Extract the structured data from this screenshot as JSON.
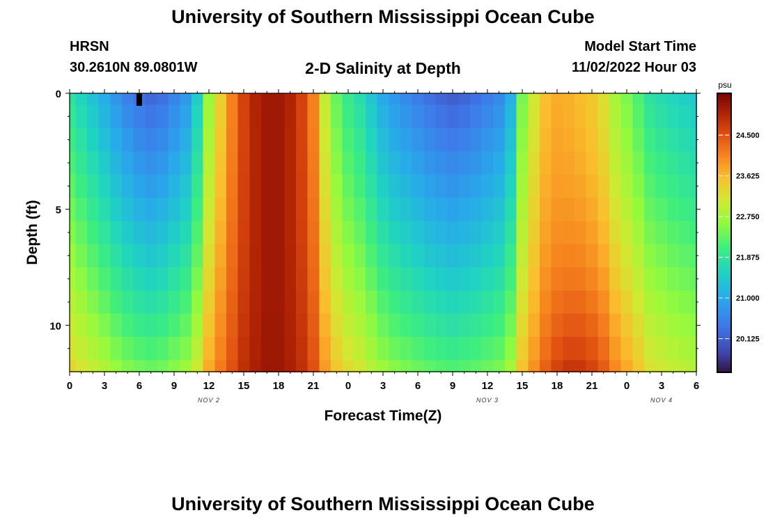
{
  "page": {
    "title": "University of Southern Mississippi Ocean Cube",
    "title_bottom": "University of Southern Mississippi Ocean Cube",
    "station": "HRSN",
    "coords": "30.2610N  89.0801W",
    "subtitle": "2-D Salinity at Depth",
    "model_start_label": "Model Start Time",
    "model_start_value": "11/02/2022 Hour 03"
  },
  "chart_data": {
    "type": "heatmap",
    "title": "2-D Salinity at Depth",
    "xlabel": "Forecast Time(Z)",
    "ylabel": "Depth (ft)",
    "x_unit": "hours since 11/02/2022 00Z",
    "xlim": [
      0,
      54
    ],
    "ylim": [
      0,
      12
    ],
    "x_ticks": [
      {
        "v": 0,
        "label": "0"
      },
      {
        "v": 3,
        "label": "3"
      },
      {
        "v": 6,
        "label": "6"
      },
      {
        "v": 9,
        "label": "9"
      },
      {
        "v": 12,
        "label": "12"
      },
      {
        "v": 15,
        "label": "15"
      },
      {
        "v": 18,
        "label": "18"
      },
      {
        "v": 21,
        "label": "21"
      },
      {
        "v": 24,
        "label": "0"
      },
      {
        "v": 27,
        "label": "3"
      },
      {
        "v": 30,
        "label": "6"
      },
      {
        "v": 33,
        "label": "9"
      },
      {
        "v": 36,
        "label": "12"
      },
      {
        "v": 39,
        "label": "15"
      },
      {
        "v": 42,
        "label": "18"
      },
      {
        "v": 45,
        "label": "21"
      },
      {
        "v": 48,
        "label": "0"
      },
      {
        "v": 51,
        "label": "3"
      },
      {
        "v": 54,
        "label": "6"
      }
    ],
    "date_labels": [
      {
        "v": 12,
        "label": "NOV 2"
      },
      {
        "v": 36,
        "label": "NOV 3"
      },
      {
        "v": 51,
        "label": "NOV 4"
      }
    ],
    "y_ticks": [
      {
        "v": 0,
        "label": "0"
      },
      {
        "v": 5,
        "label": "5"
      },
      {
        "v": 10,
        "label": "10"
      }
    ],
    "colorbar": {
      "unit": "psu",
      "range": [
        19.4,
        25.4
      ],
      "ticks": [
        "24.500",
        "23.625",
        "22.750",
        "21.875",
        "21.000",
        "20.125"
      ],
      "tick_values": [
        24.5,
        23.625,
        22.75,
        21.875,
        21.0,
        20.125
      ]
    },
    "grid": {
      "x": [
        0,
        1,
        2,
        3,
        4,
        5,
        6,
        7,
        8,
        9,
        10,
        11,
        12,
        13,
        14,
        15,
        16,
        17,
        18,
        19,
        20,
        21,
        22,
        23,
        24,
        25,
        26,
        27,
        28,
        29,
        30,
        31,
        32,
        33,
        34,
        35,
        36,
        37,
        38,
        39,
        40,
        41,
        42,
        43,
        44,
        45,
        46,
        47,
        48,
        49,
        50,
        51,
        52,
        53,
        54
      ],
      "depths": [
        0,
        1,
        2,
        3,
        4,
        5,
        6,
        7,
        8,
        9,
        10,
        11,
        12
      ],
      "values": [
        [
          21.84,
          21.58,
          21.32,
          21.06,
          20.77,
          20.53,
          20.34,
          20.24,
          20.34,
          20.57,
          20.82,
          21.47,
          22.67,
          23.41,
          24.09,
          24.66,
          24.98,
          25.11,
          25.11,
          24.98,
          24.66,
          24.09,
          23.0,
          22.35,
          21.98,
          21.73,
          21.37,
          21.02,
          20.8,
          20.63,
          20.47,
          20.33,
          20.22,
          20.14,
          20.22,
          20.33,
          20.47,
          20.63,
          21.08,
          22.46,
          23.11,
          23.58,
          23.74,
          23.7,
          23.62,
          23.48,
          23.22,
          22.78,
          22.49,
          22.18,
          21.84,
          21.7,
          21.59,
          21.5,
          21.41
        ],
        [
          21.95,
          21.69,
          21.44,
          21.18,
          20.9,
          20.67,
          20.49,
          20.4,
          20.49,
          20.71,
          20.95,
          21.59,
          22.74,
          23.45,
          24.1,
          24.65,
          24.97,
          25.11,
          25.11,
          24.97,
          24.65,
          24.1,
          23.05,
          22.42,
          22.06,
          21.82,
          21.48,
          21.14,
          20.93,
          20.77,
          20.62,
          20.48,
          20.38,
          20.31,
          20.38,
          20.48,
          20.62,
          20.77,
          21.2,
          22.53,
          23.16,
          23.61,
          23.76,
          23.72,
          23.65,
          23.51,
          23.26,
          22.84,
          22.56,
          22.26,
          21.93,
          21.8,
          21.69,
          21.61,
          21.52
        ],
        [
          22.06,
          21.81,
          21.56,
          21.31,
          21.04,
          20.82,
          20.64,
          20.55,
          20.64,
          20.85,
          21.08,
          21.7,
          22.81,
          23.49,
          24.12,
          24.65,
          24.96,
          25.11,
          25.11,
          24.96,
          24.65,
          24.12,
          23.1,
          22.49,
          22.14,
          21.92,
          21.59,
          21.26,
          21.05,
          20.9,
          20.76,
          20.63,
          20.53,
          20.46,
          20.53,
          20.63,
          20.76,
          20.9,
          21.32,
          22.6,
          23.2,
          23.64,
          23.79,
          23.75,
          23.68,
          23.55,
          23.31,
          22.9,
          22.63,
          22.34,
          22.03,
          21.9,
          21.79,
          21.71,
          21.63
        ],
        [
          22.17,
          21.93,
          21.69,
          21.45,
          21.18,
          20.97,
          20.8,
          20.71,
          20.8,
          21.0,
          21.22,
          21.82,
          22.89,
          23.54,
          24.14,
          24.66,
          24.96,
          25.11,
          25.11,
          24.96,
          24.66,
          24.14,
          23.16,
          22.57,
          22.23,
          22.02,
          21.7,
          21.38,
          21.19,
          21.04,
          20.91,
          20.78,
          20.69,
          20.62,
          20.69,
          20.78,
          20.91,
          21.04,
          21.44,
          22.67,
          23.26,
          23.68,
          23.82,
          23.8,
          23.73,
          23.61,
          23.38,
          22.98,
          22.72,
          22.44,
          22.13,
          22.01,
          21.9,
          21.82,
          21.74
        ],
        [
          22.29,
          22.05,
          21.82,
          21.59,
          21.33,
          21.12,
          20.96,
          20.88,
          20.96,
          21.15,
          21.37,
          21.94,
          22.97,
          23.59,
          24.17,
          24.67,
          24.96,
          25.11,
          25.11,
          24.96,
          24.67,
          24.17,
          23.22,
          22.66,
          22.33,
          22.12,
          21.82,
          21.51,
          21.32,
          21.18,
          21.05,
          20.93,
          20.84,
          20.78,
          20.84,
          20.93,
          21.05,
          21.18,
          21.57,
          22.75,
          23.31,
          23.72,
          23.86,
          23.85,
          23.8,
          23.68,
          23.46,
          23.07,
          22.81,
          22.53,
          22.23,
          22.11,
          22.01,
          21.93,
          21.85
        ],
        [
          22.41,
          22.18,
          21.95,
          21.73,
          21.48,
          21.28,
          21.13,
          21.05,
          21.13,
          21.31,
          21.51,
          22.07,
          23.05,
          23.65,
          24.2,
          24.68,
          24.96,
          25.11,
          25.11,
          24.96,
          24.68,
          24.2,
          23.29,
          22.75,
          22.43,
          22.23,
          21.94,
          21.64,
          21.46,
          21.33,
          21.2,
          21.09,
          21.0,
          20.94,
          21.0,
          21.09,
          21.2,
          21.33,
          21.7,
          22.83,
          23.37,
          23.77,
          23.91,
          23.91,
          23.87,
          23.76,
          23.55,
          23.17,
          22.91,
          22.64,
          22.34,
          22.23,
          22.12,
          22.05,
          21.97
        ],
        [
          22.53,
          22.31,
          22.09,
          21.87,
          21.63,
          21.44,
          21.3,
          21.22,
          21.3,
          21.47,
          21.66,
          22.2,
          23.14,
          23.71,
          24.23,
          24.69,
          24.96,
          25.11,
          25.11,
          24.96,
          24.69,
          24.23,
          23.36,
          22.84,
          22.53,
          22.34,
          22.06,
          21.77,
          21.6,
          21.47,
          21.35,
          21.24,
          21.16,
          21.1,
          21.16,
          21.24,
          21.35,
          21.47,
          21.83,
          22.91,
          23.43,
          23.82,
          23.97,
          23.98,
          23.95,
          23.84,
          23.64,
          23.27,
          23.02,
          22.75,
          22.45,
          22.34,
          22.24,
          22.17,
          22.09
        ],
        [
          22.65,
          22.44,
          22.23,
          22.02,
          21.79,
          21.61,
          21.47,
          21.4,
          21.47,
          21.64,
          21.82,
          22.33,
          23.23,
          23.77,
          24.27,
          24.71,
          24.97,
          25.11,
          25.11,
          24.97,
          24.71,
          24.27,
          23.44,
          22.94,
          22.64,
          22.46,
          22.19,
          21.91,
          21.75,
          21.62,
          21.51,
          21.4,
          21.32,
          21.27,
          21.32,
          21.4,
          21.51,
          21.62,
          21.97,
          23.0,
          23.5,
          23.88,
          24.04,
          24.07,
          24.04,
          23.94,
          23.74,
          23.38,
          23.13,
          22.86,
          22.57,
          22.46,
          22.36,
          22.29,
          22.22
        ],
        [
          22.78,
          22.58,
          22.37,
          22.17,
          21.95,
          21.78,
          21.65,
          21.58,
          21.65,
          21.81,
          21.98,
          22.47,
          23.33,
          23.84,
          24.31,
          24.73,
          24.97,
          25.11,
          25.11,
          24.97,
          24.73,
          24.31,
          23.52,
          23.04,
          22.75,
          22.58,
          22.32,
          22.06,
          21.9,
          21.78,
          21.67,
          21.57,
          21.49,
          21.44,
          21.49,
          21.57,
          21.67,
          21.78,
          22.11,
          23.09,
          23.57,
          23.95,
          24.13,
          24.17,
          24.15,
          24.05,
          23.86,
          23.5,
          23.25,
          22.98,
          22.69,
          22.58,
          22.48,
          22.41,
          22.34
        ],
        [
          22.91,
          22.72,
          22.52,
          22.33,
          22.12,
          21.95,
          21.83,
          21.77,
          21.83,
          21.98,
          22.15,
          22.61,
          23.43,
          23.91,
          24.36,
          24.75,
          24.98,
          25.11,
          25.11,
          24.98,
          24.75,
          24.36,
          23.6,
          23.15,
          22.87,
          22.7,
          22.46,
          22.21,
          22.05,
          21.94,
          21.84,
          21.74,
          21.67,
          21.62,
          21.67,
          21.74,
          21.84,
          21.94,
          22.26,
          23.19,
          23.65,
          24.03,
          24.23,
          24.3,
          24.28,
          24.18,
          23.98,
          23.62,
          23.37,
          23.1,
          22.81,
          22.7,
          22.6,
          22.53,
          22.46
        ],
        [
          23.04,
          22.86,
          22.67,
          22.49,
          22.29,
          22.13,
          22.02,
          21.96,
          22.02,
          22.16,
          22.32,
          22.76,
          23.53,
          23.98,
          24.41,
          24.78,
          24.99,
          25.12,
          25.12,
          24.99,
          24.78,
          24.41,
          23.69,
          23.26,
          22.99,
          22.83,
          22.6,
          22.36,
          22.21,
          22.11,
          22.01,
          21.92,
          21.85,
          21.8,
          21.85,
          21.92,
          22.01,
          22.11,
          22.42,
          23.3,
          23.74,
          24.13,
          24.35,
          24.44,
          24.43,
          24.32,
          24.12,
          23.75,
          23.5,
          23.23,
          22.94,
          22.83,
          22.73,
          22.66,
          22.59
        ],
        [
          23.18,
          23.0,
          22.83,
          22.66,
          22.47,
          22.32,
          22.21,
          22.16,
          22.21,
          22.35,
          22.5,
          22.92,
          23.64,
          24.06,
          24.46,
          24.81,
          25.0,
          25.12,
          25.12,
          25.0,
          24.81,
          24.46,
          23.78,
          23.37,
          23.12,
          22.97,
          22.74,
          22.52,
          22.38,
          22.28,
          22.19,
          22.1,
          22.04,
          21.99,
          22.04,
          22.1,
          22.19,
          22.28,
          22.58,
          23.41,
          23.84,
          24.24,
          24.49,
          24.61,
          24.59,
          24.48,
          24.26,
          23.88,
          23.63,
          23.36,
          23.07,
          22.96,
          22.86,
          22.79,
          22.72
        ],
        [
          23.32,
          23.15,
          22.99,
          22.83,
          22.65,
          22.51,
          22.41,
          22.36,
          22.41,
          22.54,
          22.68,
          23.08,
          23.75,
          24.14,
          24.52,
          24.84,
          25.02,
          25.13,
          25.13,
          25.02,
          24.84,
          24.52,
          23.87,
          23.48,
          23.25,
          23.11,
          22.89,
          22.68,
          22.55,
          22.46,
          22.37,
          22.29,
          22.23,
          22.18,
          22.23,
          22.29,
          22.37,
          22.46,
          22.75,
          23.53,
          23.95,
          24.36,
          24.64,
          24.78,
          24.77,
          24.64,
          24.41,
          24.02,
          23.76,
          23.49,
          23.2,
          23.09,
          22.99,
          22.92,
          22.85
        ]
      ]
    }
  }
}
